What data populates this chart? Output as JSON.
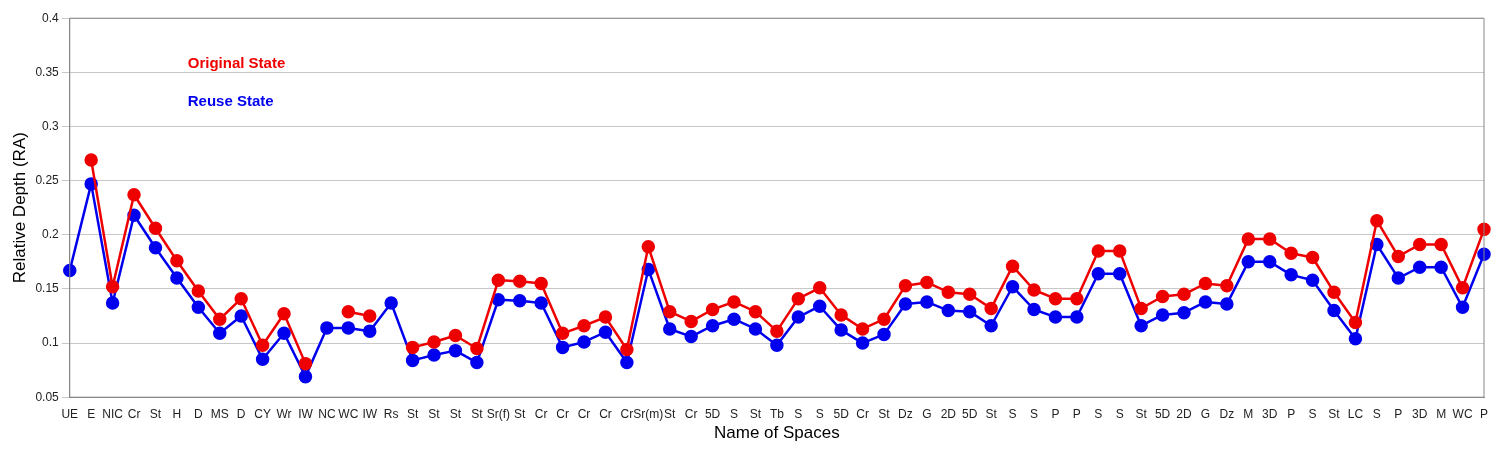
{
  "chart_data": {
    "type": "line",
    "xlabel": "Name of Spaces",
    "ylabel": "Relative Depth (RA)",
    "categories": [
      "UE",
      "E",
      "NIC",
      "Cr",
      "St",
      "H",
      "D",
      "MS",
      "D",
      "CY",
      "Wr",
      "IW",
      "NC",
      "WC",
      "IW",
      "Rs",
      "St",
      "St",
      "St",
      "St",
      "Sr(f)",
      "St",
      "Cr",
      "Cr",
      "Cr",
      "Cr",
      "Cr",
      "Sr(m)",
      "St",
      "Cr",
      "5D",
      "S",
      "St",
      "Tb",
      "S",
      "S",
      "5D",
      "Cr",
      "St",
      "Dz",
      "G",
      "2D",
      "5D",
      "St",
      "S",
      "S",
      "P",
      "P",
      "S",
      "S",
      "St",
      "5D",
      "2D",
      "G",
      "Dz",
      "M",
      "3D",
      "P",
      "S",
      "St",
      "LC",
      "S",
      "P",
      "3D",
      "M",
      "WC",
      "P"
    ],
    "series": [
      {
        "name": "Original State",
        "color": "#ee0000",
        "values": [
          null,
          0.269,
          0.152,
          0.237,
          0.206,
          0.176,
          0.148,
          0.122,
          0.141,
          0.098,
          0.127,
          0.081,
          null,
          0.129,
          0.125,
          null,
          0.096,
          0.101,
          0.107,
          0.095,
          0.158,
          0.157,
          0.155,
          0.109,
          0.116,
          0.124,
          0.094,
          0.189,
          0.129,
          0.12,
          0.131,
          0.138,
          0.129,
          0.111,
          0.141,
          0.151,
          0.126,
          0.113,
          0.122,
          0.153,
          0.156,
          0.147,
          0.145,
          0.132,
          0.171,
          0.149,
          0.141,
          0.141,
          0.185,
          0.185,
          0.132,
          0.143,
          0.145,
          0.155,
          0.153,
          0.196,
          0.196,
          0.183,
          0.179,
          0.147,
          0.119,
          0.213,
          0.18,
          0.191,
          0.191,
          0.151,
          0.205
        ]
      },
      {
        "name": "Reuse State",
        "color": "#0000ee",
        "values": [
          0.167,
          0.247,
          0.137,
          0.218,
          0.188,
          0.16,
          0.133,
          0.109,
          0.125,
          0.085,
          0.109,
          0.069,
          0.114,
          0.114,
          0.111,
          0.137,
          0.084,
          0.089,
          0.093,
          0.082,
          0.14,
          0.139,
          0.137,
          0.096,
          0.101,
          0.11,
          0.082,
          0.168,
          0.113,
          0.106,
          0.116,
          0.122,
          0.113,
          0.098,
          0.124,
          0.134,
          0.112,
          0.1,
          0.108,
          0.136,
          0.138,
          0.13,
          0.129,
          0.116,
          0.152,
          0.131,
          0.124,
          0.124,
          0.164,
          0.164,
          0.116,
          0.126,
          0.128,
          0.138,
          0.136,
          0.175,
          0.175,
          0.163,
          0.158,
          0.13,
          0.104,
          0.191,
          0.16,
          0.17,
          0.17,
          0.133,
          0.182
        ]
      }
    ],
    "ylim": [
      0.05,
      0.4
    ],
    "yticks": [
      0.05,
      0.1,
      0.15,
      0.2,
      0.25,
      0.3,
      0.35,
      0.4
    ],
    "grid": "y",
    "legend": "top left",
    "marker": "circle",
    "line_style": "solid"
  }
}
